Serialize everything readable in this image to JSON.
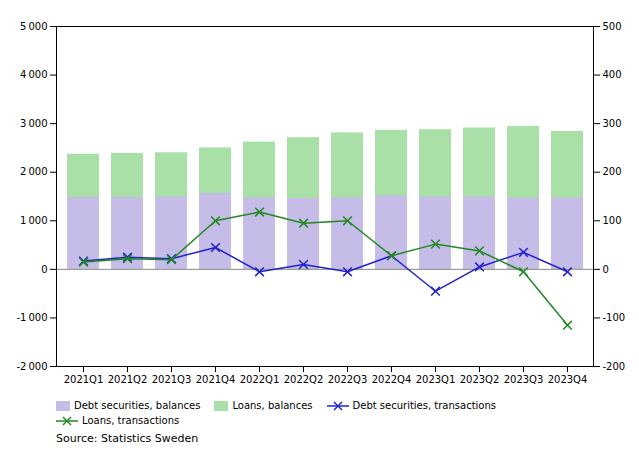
{
  "chart_data": {
    "type": "bar",
    "categories": [
      "2021Q1",
      "2021Q2",
      "2021Q3",
      "2021Q4",
      "2022Q1",
      "2022Q2",
      "2022Q3",
      "2022Q4",
      "2023Q1",
      "2023Q2",
      "2023Q3",
      "2023Q4"
    ],
    "series": [
      {
        "name": "Debt securities, balances",
        "type": "bar",
        "color": "#c5bce8",
        "values": [
          1480,
          1480,
          1490,
          1560,
          1470,
          1460,
          1470,
          1510,
          1490,
          1490,
          1465,
          1465
        ]
      },
      {
        "name": "Loans, balances",
        "type": "bar",
        "color": "#a8e0a8",
        "values": [
          2370,
          2385,
          2400,
          2500,
          2620,
          2710,
          2810,
          2860,
          2875,
          2910,
          2940,
          2840
        ]
      },
      {
        "name": "Debt securities, transactions",
        "type": "line",
        "axis": "y2",
        "color": "#2222cc",
        "marker": "x",
        "values": [
          17,
          25,
          22,
          45,
          -5,
          10,
          -5,
          28,
          -45,
          5,
          35,
          -5
        ]
      },
      {
        "name": "Loans, transactions",
        "type": "line",
        "axis": "y2",
        "color": "#228822",
        "marker": "x",
        "values": [
          15,
          22,
          20,
          100,
          118,
          95,
          100,
          28,
          52,
          38,
          -5,
          -115
        ]
      }
    ],
    "stacked": false,
    "ylim": [
      -2000,
      5000
    ],
    "yticks": [
      {
        "value": -2000,
        "label": "-2 000"
      },
      {
        "value": -1000,
        "label": "-1 000"
      },
      0,
      {
        "value": 1000,
        "label": "1 000"
      },
      {
        "value": 2000,
        "label": "2 000"
      },
      {
        "value": 3000,
        "label": "3 000"
      },
      {
        "value": 4000,
        "label": "4 000"
      },
      {
        "value": 5000,
        "label": "5 000"
      }
    ],
    "y2lim": [
      -200,
      500
    ],
    "y2ticks": [
      -200,
      -100,
      0,
      100,
      200,
      300,
      400,
      500
    ],
    "grid": false,
    "legend": "bottom",
    "caption": "Source: Statistics Sweden"
  }
}
